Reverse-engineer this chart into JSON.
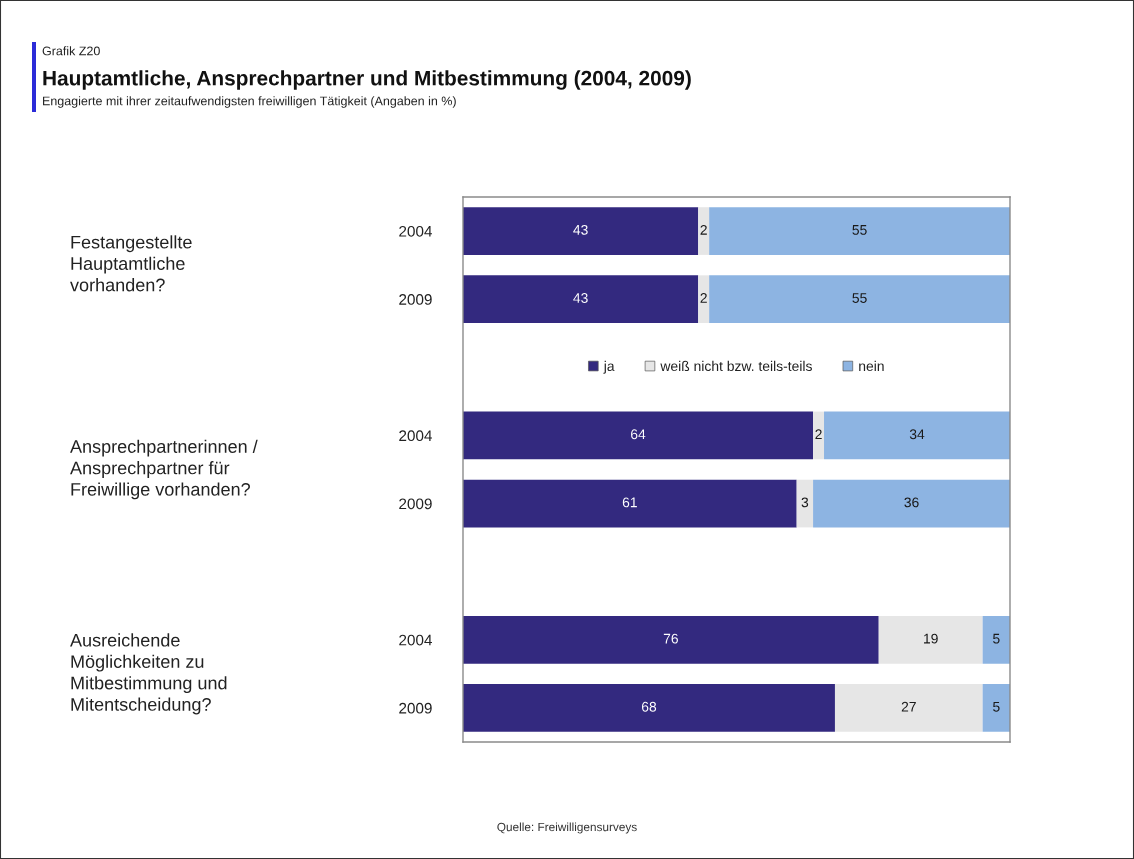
{
  "chart_data": {
    "type": "bar",
    "orientation": "horizontal",
    "stacked": true,
    "title": "Hauptamtliche, Ansprechpartner und Mitbestimmung (2004, 2009)",
    "subtitle": "Engagierte mit ihrer zeitaufwendigsten freiwilligen Tätigkeit (Angaben in %)",
    "annotations": [
      "Grafik Z20",
      "Festangestellte\nHauptamtliche\nvorhanden?",
      "Ansprechpartnerinnen /\nAnsprechpartner für\nFreiwillige vorhanden?",
      "Ausreichende\nMöglichkeiten zu\nMitbestimmung und\nMitentscheidung?",
      "Quelle: Freiwilligensurveys"
    ],
    "categories": [
      "2004",
      "2009",
      null,
      "2004",
      "2009",
      null,
      "2004",
      "2009"
    ],
    "series": [
      {
        "name": "ja",
        "color": "#33297f",
        "values": [
          43,
          43,
          null,
          64,
          61,
          null,
          76,
          68
        ]
      },
      {
        "name": "weiß nicht bzw. teils-teils",
        "color": "#e6e6e6",
        "values": [
          2,
          2,
          null,
          2,
          3,
          null,
          19,
          27
        ]
      },
      {
        "name": "nein",
        "color": "#8db4e2",
        "values": [
          55,
          55,
          null,
          34,
          36,
          null,
          5,
          5
        ]
      }
    ],
    "xlim": [
      0,
      100
    ],
    "tick_labels": "y",
    "data_labels": true,
    "legend": "center"
  }
}
